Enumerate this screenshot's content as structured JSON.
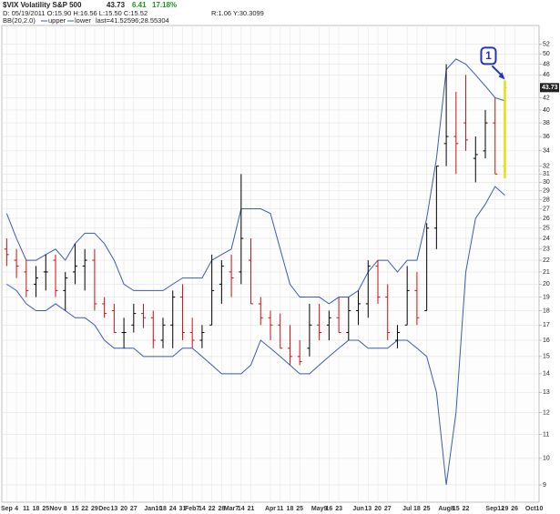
{
  "header": {
    "symbol": "$VIX Volatility S&P 500",
    "price": "43.73",
    "change": "6.41",
    "change_pct": "17.18%",
    "line2": "D: 05/19/2011 O:15.90 H:16.56 L:15.50 C:15.52",
    "line2b": "R:1.06 Y:30.3099",
    "line3a": "BB(20,2.0)",
    "upper_label": "upper",
    "lower_label": "lower",
    "line3b": "last=41.52596;28.55304"
  },
  "chart_data": {
    "type": "ohlc",
    "log_scale": true,
    "grid": true,
    "up_color": "#000000",
    "down_color": "#cc1010",
    "last_bar_color": "#e6df00",
    "band_color": "#3a5cb0",
    "categories": [
      "Sep",
      "4",
      "11",
      "18",
      "25",
      "Nov",
      "8",
      "15",
      "22",
      "29",
      "Dec",
      "13",
      "20",
      "27",
      null,
      "Jan10",
      "18",
      "24",
      "31",
      "Feb7",
      "14",
      "22",
      "28",
      "Mar7",
      "14",
      "21",
      null,
      "Apr",
      "11",
      "18",
      "25",
      null,
      "May9",
      "16",
      "23",
      null,
      "Jun",
      "13",
      "20",
      "27",
      null,
      "Jul",
      "18",
      "25",
      null,
      "Aug8",
      "15",
      "22",
      null,
      null,
      "Sep12",
      "19",
      "26",
      null,
      "Oct10"
    ],
    "open": [
      23,
      22,
      21,
      20,
      21,
      22,
      19.5,
      21,
      21.5,
      22,
      18.5,
      18,
      16.5,
      17,
      17.8,
      17.5,
      16,
      17,
      19,
      16.5,
      16,
      17,
      20,
      21,
      21,
      22,
      18.5,
      17.5,
      17,
      15.5,
      15,
      15.5,
      17,
      17,
      17.5,
      16.5,
      18,
      18.5,
      21.5,
      19,
      16,
      17,
      19.5,
      18,
      25,
      35,
      36,
      38,
      33,
      34,
      38,
      32,
      null,
      null,
      null
    ],
    "high": [
      24,
      23,
      22,
      21.5,
      22.5,
      22.5,
      21,
      23.5,
      23,
      23,
      19,
      18.5,
      17.5,
      18.5,
      18.5,
      18,
      17.5,
      19.5,
      20,
      17.5,
      17,
      22.5,
      22,
      22.5,
      31,
      24,
      19,
      18,
      17.8,
      17,
      16,
      18.5,
      18.5,
      18,
      19,
      19,
      19.5,
      22,
      22,
      20,
      17,
      21.5,
      21,
      25.5,
      32,
      48,
      43,
      46,
      36,
      40,
      42,
      45,
      null,
      null,
      null
    ],
    "low": [
      21.5,
      20.5,
      19,
      19,
      19.5,
      19,
      18,
      20,
      19.5,
      18,
      17.5,
      16.5,
      15.5,
      16.5,
      16.8,
      15.5,
      15.5,
      15.5,
      16,
      15.5,
      15.5,
      17,
      18.5,
      19,
      20,
      18.5,
      17,
      16,
      15.5,
      14.5,
      14.5,
      15,
      16,
      16,
      16.5,
      16,
      17,
      17.5,
      18.5,
      16,
      15.5,
      17,
      17,
      18,
      23,
      32,
      31,
      34,
      30,
      33,
      31,
      30.5,
      null,
      null,
      null
    ],
    "close": [
      22.5,
      21.5,
      19.5,
      20.5,
      21,
      19.5,
      20.5,
      21.5,
      22,
      18.5,
      17.8,
      16.5,
      16.5,
      17.8,
      17.5,
      16,
      17,
      19,
      16.5,
      16,
      16.5,
      19.5,
      21.5,
      20.5,
      24,
      18.5,
      17.5,
      17,
      15.5,
      15,
      14.7,
      17,
      16.5,
      17.5,
      16.5,
      18,
      18.5,
      21.5,
      19,
      16.5,
      16.5,
      19.5,
      17.5,
      25,
      32,
      36,
      35,
      35.5,
      33.5,
      38,
      31,
      43.73,
      null,
      null,
      null
    ],
    "series": [
      {
        "name": "upper",
        "values": [
          26.5,
          24,
          22,
          22,
          22.5,
          23,
          22,
          23.5,
          24.5,
          24.5,
          23.5,
          22,
          20,
          19.5,
          19.5,
          19.5,
          19.5,
          20,
          20.5,
          20.5,
          20.5,
          22,
          22.5,
          23,
          27,
          27,
          27,
          26.5,
          23,
          20,
          19,
          19,
          19,
          18.5,
          19,
          19,
          19.5,
          21,
          22,
          22,
          21,
          22,
          22,
          26,
          33,
          47,
          49,
          48,
          46,
          44,
          42,
          41.5,
          null,
          null,
          null
        ]
      },
      {
        "name": "lower",
        "values": [
          20,
          19.5,
          18.5,
          18,
          18,
          18.5,
          18,
          17.5,
          17.5,
          17,
          16,
          15.5,
          15.5,
          15.5,
          15,
          15,
          15,
          15,
          15.5,
          15.5,
          15,
          14.5,
          14,
          14,
          14,
          14.5,
          16,
          15.5,
          15,
          14.5,
          14,
          14,
          14.5,
          15,
          15.5,
          16,
          16,
          15.5,
          15.5,
          15.5,
          16,
          16,
          15.5,
          15,
          13,
          9,
          12,
          21,
          26,
          27.5,
          29.5,
          28.5,
          null,
          null,
          null
        ]
      }
    ],
    "ylim": [
      8.4,
      56
    ],
    "yticks": [
      9,
      10,
      11,
      12,
      13,
      14,
      15,
      16,
      17,
      18,
      19,
      20,
      21,
      22,
      23,
      24,
      25,
      26,
      27,
      28,
      29,
      30,
      31,
      32,
      34,
      36,
      38,
      40,
      42,
      46,
      48,
      50,
      52
    ],
    "last_value_tag": 43.73,
    "annotation": "1"
  }
}
